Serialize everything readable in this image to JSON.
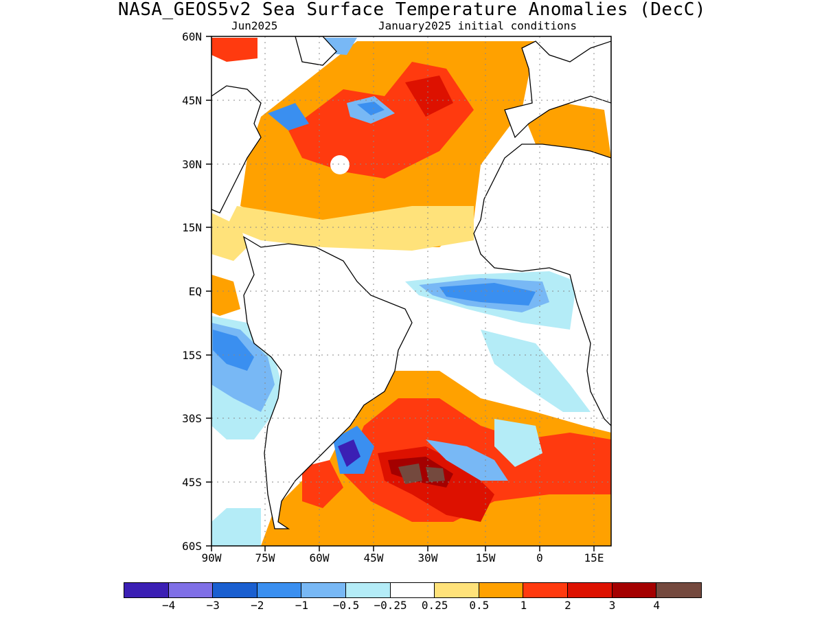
{
  "title": "NASA_GEOS5v2 Sea Surface Temperature Anomalies (DecC)",
  "subtitle_left": "Jun2025",
  "subtitle_right": "January2025 initial conditions",
  "lat_labels": [
    "60N",
    "45N",
    "30N",
    "15N",
    "EQ",
    "15S",
    "30S",
    "45S",
    "60S"
  ],
  "lon_labels": [
    "90W",
    "75W",
    "60W",
    "45W",
    "30W",
    "15W",
    "0",
    "15E"
  ],
  "colorbar": {
    "colors": [
      "#3b1fb4",
      "#7f6fe6",
      "#1a5fd0",
      "#3a8ff0",
      "#78b8f5",
      "#b4ecf7",
      "#ffffff",
      "#ffe27a",
      "#ffa100",
      "#ff3a0f",
      "#dd1100",
      "#a40000",
      "#74493e"
    ],
    "labels": [
      "−4",
      "−3",
      "−2",
      "−1",
      "−0.5",
      "−0.25",
      "0.25",
      "0.5",
      "1",
      "2",
      "3",
      "4"
    ]
  }
}
